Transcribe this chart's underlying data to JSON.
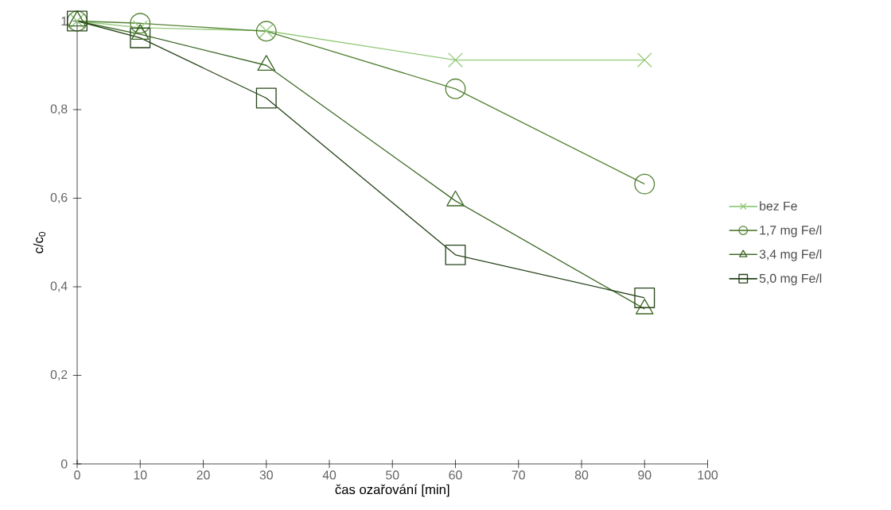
{
  "chart_data": {
    "type": "line",
    "xlabel": "čas ozařování [min]",
    "ylabel": "c/c$_{0}$",
    "x": [
      0,
      10,
      30,
      60,
      90
    ],
    "series": [
      {
        "name": "bez Fe",
        "color": "#93c97a",
        "marker": "cross",
        "values": [
          1,
          0.985,
          0.978,
          0.912,
          0.912
        ]
      },
      {
        "name": "1,7 mg Fe/l",
        "color": "#548235",
        "marker": "circle",
        "values": [
          1,
          0.995,
          0.977,
          0.847,
          0.632
        ]
      },
      {
        "name": "3,4 mg Fe/l",
        "color": "#3d6826",
        "marker": "triangle",
        "values": [
          1,
          0.97,
          0.9,
          0.594,
          0.35
        ]
      },
      {
        "name": "5,0 mg Fe/l",
        "color": "#27431a",
        "marker": "square",
        "values": [
          1,
          0.962,
          0.826,
          0.472,
          0.375
        ]
      }
    ],
    "xlim": [
      0,
      100
    ],
    "xticks": [
      0,
      10,
      20,
      30,
      40,
      50,
      60,
      70,
      80,
      90,
      100
    ],
    "ylim": [
      0,
      1
    ],
    "yticks": [
      {
        "value": 0,
        "label": "0"
      },
      {
        "value": 0.2,
        "label": "0,2"
      },
      {
        "value": 0.4,
        "label": "0,4"
      },
      {
        "value": 0.6,
        "label": "0,6"
      },
      {
        "value": 0.8,
        "label": "0,8"
      },
      {
        "value": 1,
        "label": "1"
      }
    ],
    "grid": false,
    "legend": "right",
    "line_style": "solid"
  }
}
